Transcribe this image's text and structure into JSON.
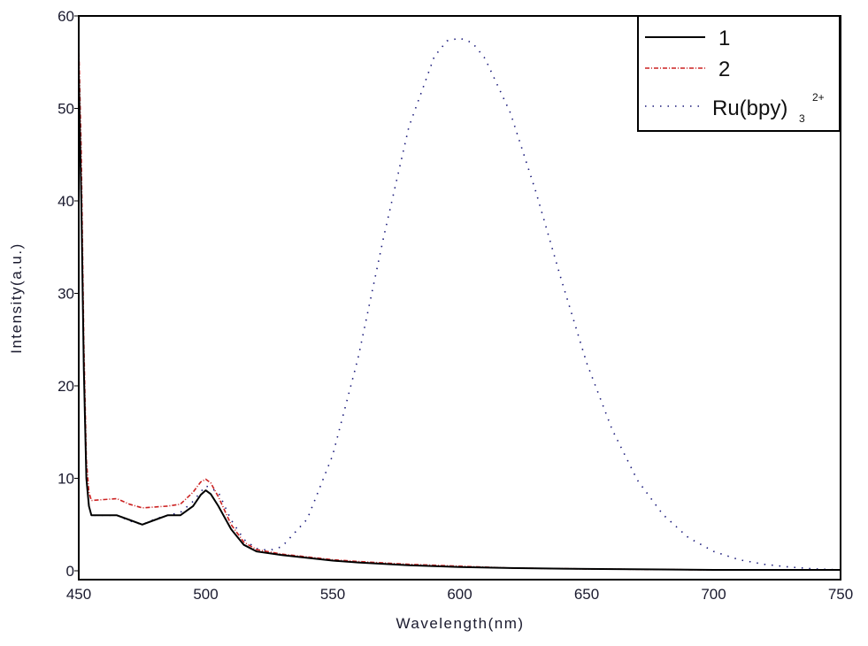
{
  "chart_data": {
    "type": "line",
    "title": "",
    "xlabel": "Wavelength(nm)",
    "ylabel": "Intensity(a.u.)",
    "xlim": [
      450,
      750
    ],
    "ylim": [
      0,
      60
    ],
    "xticks": [
      450,
      500,
      550,
      600,
      650,
      700,
      750
    ],
    "yticks": [
      0,
      10,
      20,
      30,
      40,
      50,
      60
    ],
    "grid": false,
    "legend_position": "upper right",
    "series": [
      {
        "name": "1",
        "style": "solid",
        "color": "#000000",
        "x": [
          450,
          451,
          452,
          453,
          454,
          455,
          460,
          465,
          470,
          475,
          480,
          485,
          490,
          495,
          498,
          500,
          502,
          505,
          510,
          515,
          520,
          530,
          540,
          550,
          560,
          580,
          600,
          620,
          650,
          700,
          750
        ],
        "y": [
          54,
          40,
          22,
          10,
          7,
          6,
          6,
          6,
          5.5,
          5,
          5.5,
          6,
          6,
          7,
          8.2,
          8.7,
          8.3,
          7,
          4.5,
          2.8,
          2.1,
          1.7,
          1.4,
          1.1,
          0.9,
          0.6,
          0.4,
          0.3,
          0.2,
          0.1,
          0.1
        ]
      },
      {
        "name": "2",
        "style": "dash-dot",
        "color": "#cc2222",
        "x": [
          450,
          451,
          452,
          453,
          454,
          455,
          460,
          465,
          470,
          475,
          480,
          485,
          490,
          495,
          498,
          500,
          502,
          505,
          510,
          515,
          520,
          530,
          540,
          550,
          560,
          580,
          600,
          620,
          650,
          700,
          750
        ],
        "y": [
          57,
          45,
          25,
          12,
          8.5,
          7.6,
          7.7,
          7.8,
          7.2,
          6.8,
          6.9,
          7,
          7.2,
          8.5,
          9.6,
          9.9,
          9.5,
          8,
          5,
          3.1,
          2.3,
          1.8,
          1.5,
          1.2,
          1.0,
          0.7,
          0.5,
          0.3,
          0.2,
          0.1,
          0.1
        ]
      },
      {
        "name": "Ru(bpy)3 2+",
        "style": "dotted",
        "color": "#1a1a7a",
        "x": [
          450,
          451,
          452,
          453,
          454,
          455,
          460,
          465,
          470,
          475,
          480,
          485,
          490,
          495,
          500,
          505,
          510,
          515,
          520,
          525,
          530,
          540,
          550,
          560,
          570,
          580,
          590,
          595,
          600,
          605,
          610,
          620,
          630,
          640,
          650,
          660,
          670,
          680,
          690,
          700,
          710,
          720,
          730,
          740,
          750
        ],
        "y": [
          52,
          40,
          22,
          10,
          7,
          6,
          6,
          6,
          5.4,
          5,
          5.6,
          6,
          6.3,
          7.5,
          9.2,
          8.5,
          5.5,
          3.4,
          2.4,
          2.2,
          2.6,
          5.6,
          12.5,
          23,
          36,
          48,
          55.6,
          57.3,
          57.6,
          57.1,
          55.4,
          49.5,
          41,
          31.5,
          22.5,
          15.3,
          9.8,
          6.1,
          3.6,
          2.1,
          1.2,
          0.7,
          0.4,
          0.2,
          0.1
        ]
      }
    ],
    "legend": {
      "entries": [
        {
          "label": "1",
          "style": "solid",
          "color": "#000000"
        },
        {
          "label": "2",
          "style": "dash-dot",
          "color": "#cc2222"
        },
        {
          "label": "Ru(bpy)",
          "subscript": "3",
          "superscript": "2+",
          "style": "dotted",
          "color": "#1a1a7a"
        }
      ]
    }
  }
}
